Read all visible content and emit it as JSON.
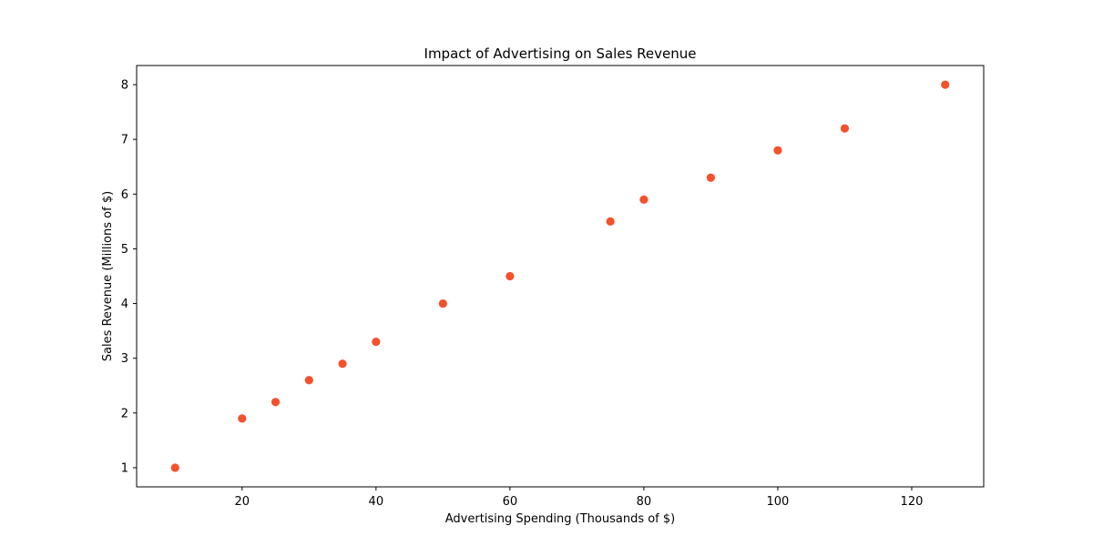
{
  "chart_data": {
    "type": "scatter",
    "title": "Impact of Advertising on Sales Revenue",
    "xlabel": "Advertising Spending (Thousands of $)",
    "ylabel": "Sales Revenue (Millions of $)",
    "xlim": [
      4.25,
      130.75
    ],
    "ylim": [
      0.65,
      8.35
    ],
    "xticks": [
      20,
      40,
      60,
      80,
      100,
      120
    ],
    "yticks": [
      1,
      2,
      3,
      4,
      5,
      6,
      7,
      8
    ],
    "grid": false,
    "marker_color": "#f4512c",
    "series": [
      {
        "x": [
          10,
          20,
          25,
          30,
          35,
          40,
          50,
          60,
          75,
          80,
          90,
          100,
          110,
          125
        ],
        "y": [
          1.0,
          1.9,
          2.2,
          2.6,
          2.9,
          3.3,
          4.0,
          4.5,
          5.5,
          5.9,
          6.3,
          6.8,
          7.2,
          8.0
        ]
      }
    ]
  }
}
